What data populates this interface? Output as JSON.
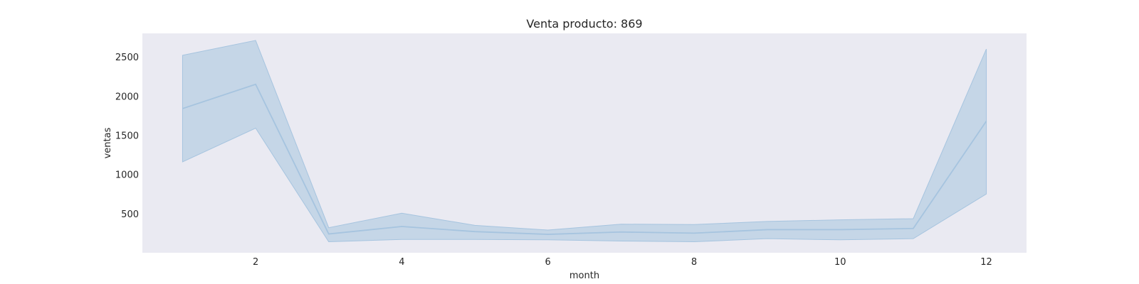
{
  "chart_data": {
    "type": "line",
    "title": "Venta producto: 869",
    "xlabel": "month",
    "ylabel": "ventas",
    "x": [
      1,
      2,
      3,
      4,
      5,
      6,
      7,
      8,
      9,
      10,
      11,
      12
    ],
    "series": [
      {
        "values": [
          1840,
          2150,
          240,
          335,
          270,
          235,
          265,
          250,
          295,
          295,
          310,
          1680
        ],
        "ci_lower": [
          1160,
          1590,
          140,
          170,
          170,
          165,
          150,
          140,
          180,
          165,
          180,
          750
        ],
        "ci_upper": [
          2520,
          2710,
          320,
          505,
          350,
          290,
          365,
          360,
          400,
          420,
          435,
          2600
        ]
      }
    ],
    "xlim": [
      0.45,
      12.55
    ],
    "ylim": [
      0,
      2800
    ],
    "xticks": [
      2,
      4,
      6,
      8,
      10,
      12
    ],
    "yticks": [
      500,
      1000,
      1500,
      2000,
      2500
    ],
    "grid": false,
    "colors": {
      "line": "#a6c4df",
      "band": "#a6c4df",
      "plot_background": "#eaeaf2"
    }
  }
}
